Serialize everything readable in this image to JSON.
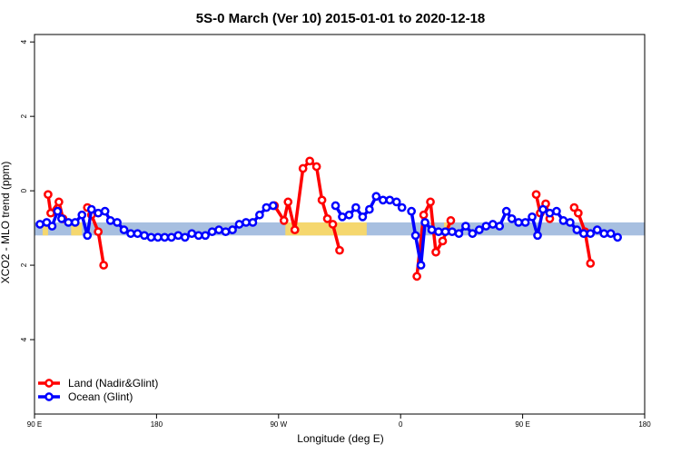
{
  "chart_data": {
    "type": "line",
    "title": "5S-0 March (Ver 10)   2015-01-01 to 2020-12-18",
    "xlabel": "Longitude (deg E)",
    "ylabel": "XCO2 - MLO trend (ppm)",
    "xlim": [
      90,
      540
    ],
    "ylim": [
      -6,
      4.2
    ],
    "x_ticks": [
      {
        "value": 90,
        "label": "90 E"
      },
      {
        "value": 180,
        "label": "180"
      },
      {
        "value": 270,
        "label": "90 W"
      },
      {
        "value": 360,
        "label": "0"
      },
      {
        "value": 450,
        "label": "90 E"
      },
      {
        "value": 540,
        "label": "180"
      }
    ],
    "y_ticks": [
      {
        "value": 4,
        "label": "4"
      },
      {
        "value": 2,
        "label": "2"
      },
      {
        "value": 0,
        "label": "0"
      },
      {
        "value": -2,
        "label": "2"
      },
      {
        "value": -4,
        "label": "4"
      }
    ],
    "band": {
      "ymin": -1.2,
      "ymax": -0.85,
      "color": "#a7bfe0",
      "land_color": "#f5d76e",
      "land_ranges": [
        [
          275,
          335
        ],
        [
          96,
          100
        ],
        [
          117,
          125
        ],
        [
          392,
          397
        ]
      ]
    },
    "series": [
      {
        "name": "Land (Nadir&Glint)",
        "color": "#ff0000",
        "segments": [
          [
            [
              100,
              -0.1
            ],
            [
              102,
              -0.6
            ],
            [
              108,
              -0.3
            ],
            [
              111,
              -0.75
            ]
          ],
          [
            [
              129,
              -0.45
            ],
            [
              132,
              -0.65
            ],
            [
              137,
              -1.1
            ],
            [
              141,
              -2.0
            ]
          ],
          [
            [
              267,
              -0.4
            ],
            [
              274,
              -0.8
            ],
            [
              277,
              -0.3
            ],
            [
              282,
              -1.05
            ],
            [
              288,
              0.6
            ],
            [
              293,
              0.8
            ],
            [
              298,
              0.65
            ],
            [
              302,
              -0.25
            ],
            [
              306,
              -0.75
            ],
            [
              310,
              -0.9
            ],
            [
              315,
              -1.6
            ]
          ],
          [
            [
              372,
              -2.3
            ],
            [
              377,
              -0.65
            ],
            [
              382,
              -0.3
            ],
            [
              386,
              -1.65
            ],
            [
              391,
              -1.35
            ],
            [
              397,
              -0.8
            ]
          ],
          [
            [
              460,
              -0.1
            ],
            [
              463,
              -0.6
            ],
            [
              467,
              -0.35
            ],
            [
              470,
              -0.75
            ]
          ],
          [
            [
              488,
              -0.45
            ],
            [
              491,
              -0.6
            ],
            [
              496,
              -1.1
            ],
            [
              500,
              -1.95
            ]
          ]
        ]
      },
      {
        "name": "Ocean (Glint)",
        "color": "#0000ff",
        "segments": [
          [
            [
              94,
              -0.9
            ],
            [
              99,
              -0.85
            ],
            [
              103,
              -0.95
            ],
            [
              107,
              -0.55
            ],
            [
              110,
              -0.75
            ],
            [
              115,
              -0.85
            ],
            [
              120,
              -0.85
            ],
            [
              125,
              -0.65
            ],
            [
              129,
              -1.2
            ],
            [
              132,
              -0.5
            ],
            [
              137,
              -0.6
            ],
            [
              142,
              -0.55
            ],
            [
              146,
              -0.8
            ],
            [
              151,
              -0.85
            ],
            [
              156,
              -1.05
            ],
            [
              161,
              -1.15
            ],
            [
              166,
              -1.15
            ],
            [
              171,
              -1.2
            ],
            [
              176,
              -1.25
            ],
            [
              181,
              -1.25
            ],
            [
              186,
              -1.25
            ],
            [
              191,
              -1.25
            ],
            [
              196,
              -1.2
            ],
            [
              201,
              -1.25
            ],
            [
              206,
              -1.15
            ],
            [
              211,
              -1.2
            ],
            [
              216,
              -1.2
            ],
            [
              221,
              -1.1
            ],
            [
              226,
              -1.05
            ],
            [
              231,
              -1.1
            ],
            [
              236,
              -1.05
            ],
            [
              241,
              -0.9
            ],
            [
              246,
              -0.85
            ],
            [
              251,
              -0.85
            ],
            [
              256,
              -0.65
            ],
            [
              261,
              -0.45
            ],
            [
              266,
              -0.4
            ]
          ],
          [
            [
              312,
              -0.4
            ],
            [
              317,
              -0.7
            ],
            [
              322,
              -0.65
            ],
            [
              327,
              -0.45
            ],
            [
              332,
              -0.7
            ],
            [
              337,
              -0.5
            ],
            [
              342,
              -0.15
            ],
            [
              347,
              -0.25
            ],
            [
              352,
              -0.25
            ],
            [
              357,
              -0.3
            ],
            [
              361,
              -0.45
            ]
          ],
          [
            [
              368,
              -0.55
            ],
            [
              371,
              -1.2
            ],
            [
              375,
              -2.0
            ],
            [
              378,
              -0.85
            ],
            [
              383,
              -1.05
            ],
            [
              388,
              -1.1
            ],
            [
              393,
              -1.1
            ],
            [
              398,
              -1.1
            ],
            [
              403,
              -1.15
            ],
            [
              408,
              -0.95
            ],
            [
              413,
              -1.15
            ],
            [
              418,
              -1.05
            ],
            [
              423,
              -0.95
            ],
            [
              428,
              -0.9
            ],
            [
              433,
              -0.95
            ],
            [
              438,
              -0.55
            ],
            [
              442,
              -0.75
            ],
            [
              447,
              -0.85
            ],
            [
              452,
              -0.85
            ],
            [
              457,
              -0.7
            ],
            [
              461,
              -1.2
            ],
            [
              465,
              -0.5
            ],
            [
              470,
              -0.6
            ],
            [
              475,
              -0.55
            ],
            [
              480,
              -0.8
            ],
            [
              485,
              -0.85
            ],
            [
              490,
              -1.05
            ],
            [
              495,
              -1.15
            ],
            [
              500,
              -1.15
            ],
            [
              505,
              -1.05
            ],
            [
              510,
              -1.15
            ],
            [
              515,
              -1.15
            ],
            [
              520,
              -1.25
            ]
          ]
        ]
      }
    ],
    "legend": {
      "position": "bottom-left",
      "entries": [
        "Land (Nadir&Glint)",
        "Ocean (Glint)"
      ]
    }
  }
}
